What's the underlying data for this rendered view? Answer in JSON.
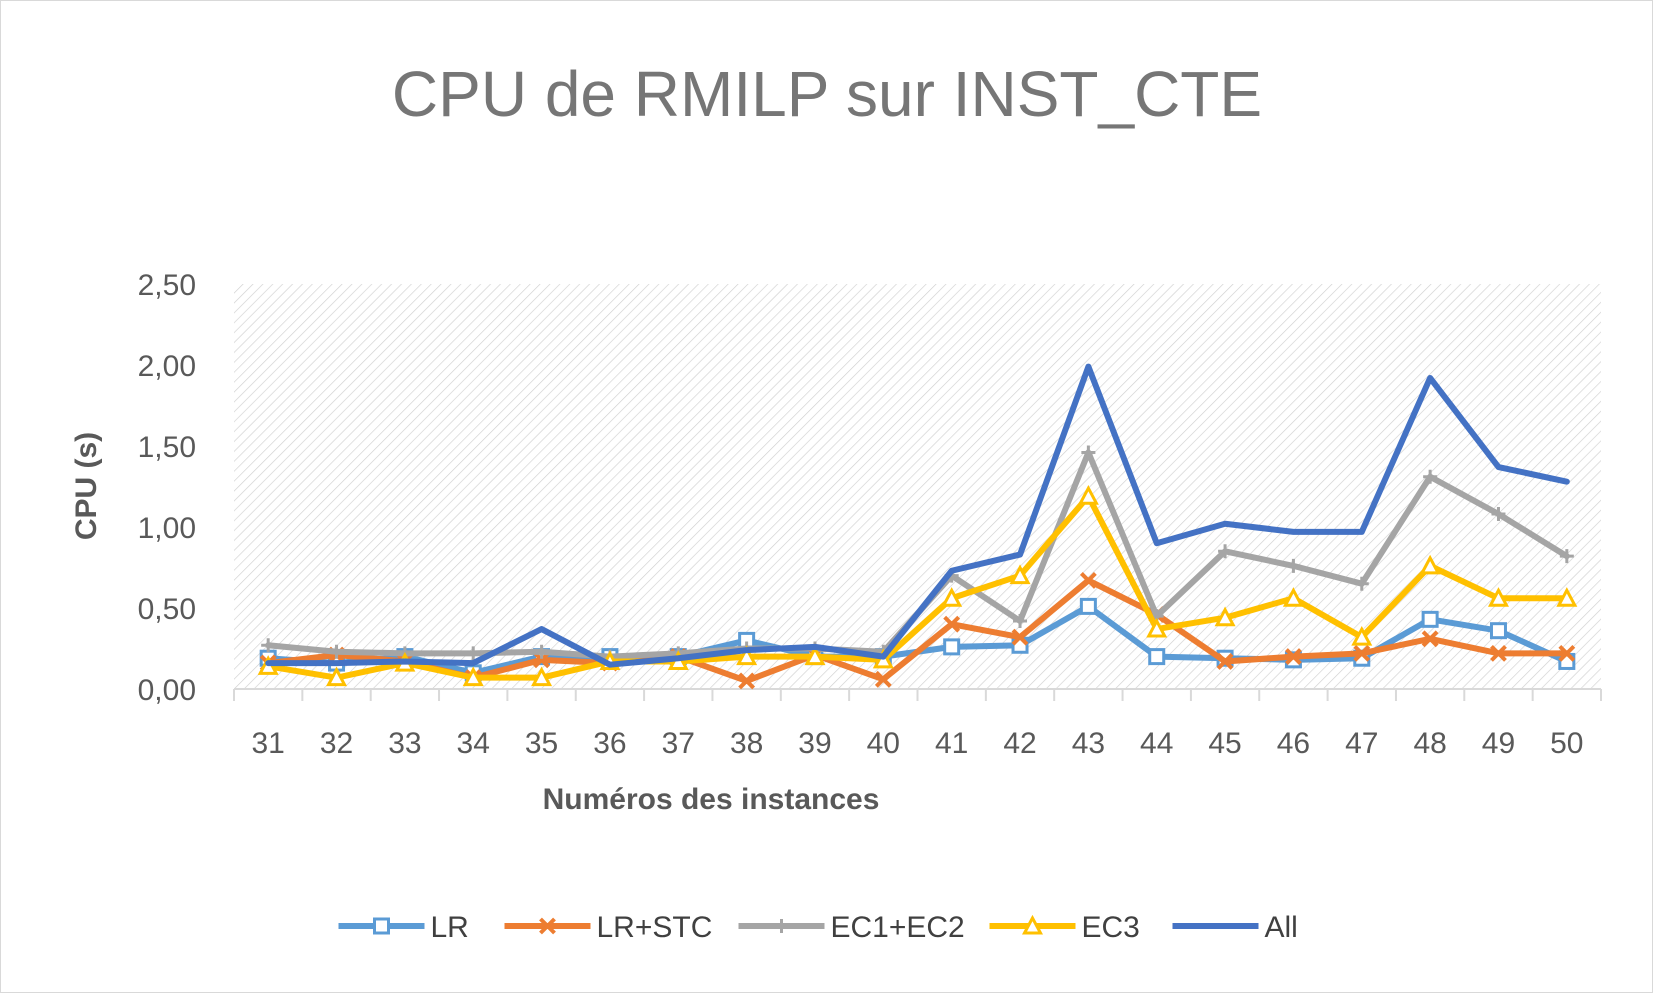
{
  "chart_data": {
    "type": "line",
    "title": "CPU de RMILP sur INST_CTE",
    "xlabel": "Numéros des instances",
    "ylabel": "CPU (s)",
    "ylim": [
      0,
      2.5
    ],
    "y_ticks": [
      {
        "value": 0,
        "label": "0,00"
      },
      {
        "value": 0.5,
        "label": "0,50"
      },
      {
        "value": 1.0,
        "label": "1,00"
      },
      {
        "value": 1.5,
        "label": "1,50"
      },
      {
        "value": 2.0,
        "label": "2,00"
      },
      {
        "value": 2.5,
        "label": "2,50"
      }
    ],
    "categories": [
      "31",
      "32",
      "33",
      "34",
      "35",
      "36",
      "37",
      "38",
      "39",
      "40",
      "41",
      "42",
      "43",
      "44",
      "45",
      "46",
      "47",
      "48",
      "49",
      "50"
    ],
    "legend_position": "bottom",
    "plot_background": "hatched",
    "series": [
      {
        "name": "LR",
        "color": "#5B9BD5",
        "marker": "square",
        "values": [
          0.19,
          0.16,
          0.2,
          0.1,
          0.2,
          0.2,
          0.2,
          0.3,
          0.2,
          0.2,
          0.26,
          0.27,
          0.51,
          0.2,
          0.19,
          0.18,
          0.19,
          0.43,
          0.36,
          0.17
        ]
      },
      {
        "name": "LR+STC",
        "color": "#ED7D31",
        "marker": "x",
        "values": [
          0.16,
          0.21,
          0.17,
          0.07,
          0.18,
          0.16,
          0.2,
          0.05,
          0.21,
          0.06,
          0.4,
          0.32,
          0.67,
          0.46,
          0.17,
          0.2,
          0.22,
          0.31,
          0.22,
          0.22
        ]
      },
      {
        "name": "EC1+EC2",
        "color": "#A5A5A5",
        "marker": "plus",
        "values": [
          0.27,
          0.23,
          0.22,
          0.22,
          0.23,
          0.2,
          0.22,
          0.25,
          0.25,
          0.23,
          0.7,
          0.42,
          1.46,
          0.45,
          0.85,
          0.76,
          0.65,
          1.31,
          1.08,
          0.82
        ]
      },
      {
        "name": "EC3",
        "color": "#FFC000",
        "marker": "triangle",
        "values": [
          0.14,
          0.07,
          0.16,
          0.07,
          0.07,
          0.17,
          0.17,
          0.2,
          0.2,
          0.18,
          0.56,
          0.7,
          1.19,
          0.37,
          0.44,
          0.56,
          0.32,
          0.76,
          0.56,
          0.56
        ]
      },
      {
        "name": "All",
        "color": "#4472C4",
        "marker": "none",
        "values": [
          0.16,
          0.16,
          0.17,
          0.16,
          0.37,
          0.15,
          0.19,
          0.24,
          0.26,
          0.2,
          0.73,
          0.83,
          1.99,
          0.9,
          1.02,
          0.97,
          0.97,
          1.92,
          1.37,
          1.28
        ]
      }
    ]
  }
}
